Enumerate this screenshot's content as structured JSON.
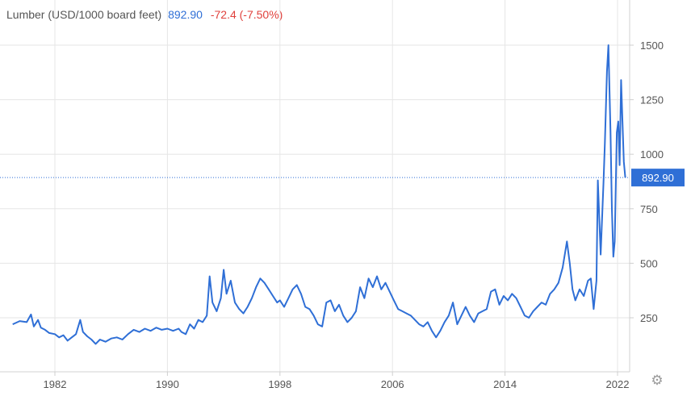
{
  "header": {
    "title": "Lumber (USD/1000 board feet)",
    "price": "892.90",
    "change": "-72.4 (-7.50%)"
  },
  "colors": {
    "line": "#2f6fd6",
    "negative": "#e0413c",
    "grid": "#e6e6e6",
    "axis_text": "#555555"
  },
  "chart_data": {
    "type": "line",
    "title": "Lumber (USD/1000 board feet)",
    "xlabel": "",
    "ylabel": "",
    "xlim": [
      1979.0,
      2023.0
    ],
    "ylim": [
      0,
      1650
    ],
    "x_ticks": [
      1982,
      1990,
      1998,
      2006,
      2014,
      2022
    ],
    "x_tick_labels": [
      "1982",
      "1990",
      "1998",
      "2006",
      "2014",
      "2022"
    ],
    "y_ticks": [
      250,
      500,
      750,
      1000,
      1250,
      1500
    ],
    "y_tick_labels": [
      "250",
      "500",
      "750",
      "1000",
      "1250",
      "1500"
    ],
    "grid": true,
    "last_value": 892.9,
    "last_value_label": "892.90",
    "series": [
      {
        "values": [
          [
            1979.0,
            220
          ],
          [
            1979.5,
            235
          ],
          [
            1980.0,
            230
          ],
          [
            1980.3,
            265
          ],
          [
            1980.5,
            210
          ],
          [
            1980.8,
            240
          ],
          [
            1981.0,
            205
          ],
          [
            1981.3,
            195
          ],
          [
            1981.6,
            180
          ],
          [
            1982.0,
            175
          ],
          [
            1982.3,
            160
          ],
          [
            1982.6,
            170
          ],
          [
            1982.9,
            145
          ],
          [
            1983.2,
            160
          ],
          [
            1983.5,
            175
          ],
          [
            1983.8,
            240
          ],
          [
            1984.0,
            185
          ],
          [
            1984.3,
            165
          ],
          [
            1984.6,
            150
          ],
          [
            1984.9,
            130
          ],
          [
            1985.2,
            150
          ],
          [
            1985.6,
            140
          ],
          [
            1986.0,
            155
          ],
          [
            1986.4,
            160
          ],
          [
            1986.8,
            150
          ],
          [
            1987.2,
            175
          ],
          [
            1987.6,
            195
          ],
          [
            1988.0,
            185
          ],
          [
            1988.4,
            200
          ],
          [
            1988.8,
            190
          ],
          [
            1989.2,
            205
          ],
          [
            1989.6,
            195
          ],
          [
            1990.0,
            200
          ],
          [
            1990.4,
            190
          ],
          [
            1990.8,
            200
          ],
          [
            1991.0,
            185
          ],
          [
            1991.3,
            175
          ],
          [
            1991.6,
            220
          ],
          [
            1991.9,
            200
          ],
          [
            1992.2,
            240
          ],
          [
            1992.5,
            230
          ],
          [
            1992.8,
            260
          ],
          [
            1993.0,
            440
          ],
          [
            1993.2,
            320
          ],
          [
            1993.5,
            280
          ],
          [
            1993.8,
            340
          ],
          [
            1994.0,
            470
          ],
          [
            1994.2,
            360
          ],
          [
            1994.5,
            420
          ],
          [
            1994.8,
            320
          ],
          [
            1995.1,
            290
          ],
          [
            1995.4,
            270
          ],
          [
            1995.7,
            300
          ],
          [
            1996.0,
            340
          ],
          [
            1996.3,
            390
          ],
          [
            1996.6,
            430
          ],
          [
            1996.9,
            410
          ],
          [
            1997.2,
            380
          ],
          [
            1997.5,
            350
          ],
          [
            1997.8,
            320
          ],
          [
            1998.0,
            330
          ],
          [
            1998.3,
            300
          ],
          [
            1998.6,
            340
          ],
          [
            1998.9,
            380
          ],
          [
            1999.2,
            400
          ],
          [
            1999.5,
            360
          ],
          [
            1999.8,
            300
          ],
          [
            2000.1,
            290
          ],
          [
            2000.4,
            260
          ],
          [
            2000.7,
            220
          ],
          [
            2001.0,
            210
          ],
          [
            2001.3,
            320
          ],
          [
            2001.6,
            330
          ],
          [
            2001.9,
            280
          ],
          [
            2002.2,
            310
          ],
          [
            2002.5,
            260
          ],
          [
            2002.8,
            230
          ],
          [
            2003.1,
            250
          ],
          [
            2003.4,
            280
          ],
          [
            2003.7,
            390
          ],
          [
            2004.0,
            340
          ],
          [
            2004.3,
            430
          ],
          [
            2004.6,
            390
          ],
          [
            2004.9,
            440
          ],
          [
            2005.2,
            380
          ],
          [
            2005.5,
            410
          ],
          [
            2005.8,
            370
          ],
          [
            2006.1,
            330
          ],
          [
            2006.4,
            290
          ],
          [
            2006.7,
            280
          ],
          [
            2007.0,
            270
          ],
          [
            2007.3,
            260
          ],
          [
            2007.6,
            240
          ],
          [
            2007.9,
            220
          ],
          [
            2008.2,
            210
          ],
          [
            2008.5,
            230
          ],
          [
            2008.8,
            190
          ],
          [
            2009.1,
            160
          ],
          [
            2009.4,
            190
          ],
          [
            2009.7,
            230
          ],
          [
            2010.0,
            260
          ],
          [
            2010.3,
            320
          ],
          [
            2010.6,
            220
          ],
          [
            2010.9,
            260
          ],
          [
            2011.2,
            300
          ],
          [
            2011.5,
            260
          ],
          [
            2011.8,
            230
          ],
          [
            2012.1,
            270
          ],
          [
            2012.4,
            280
          ],
          [
            2012.7,
            290
          ],
          [
            2013.0,
            370
          ],
          [
            2013.3,
            380
          ],
          [
            2013.6,
            310
          ],
          [
            2013.9,
            350
          ],
          [
            2014.2,
            330
          ],
          [
            2014.5,
            360
          ],
          [
            2014.8,
            340
          ],
          [
            2015.1,
            300
          ],
          [
            2015.4,
            260
          ],
          [
            2015.7,
            250
          ],
          [
            2016.0,
            280
          ],
          [
            2016.3,
            300
          ],
          [
            2016.6,
            320
          ],
          [
            2016.9,
            310
          ],
          [
            2017.2,
            360
          ],
          [
            2017.5,
            380
          ],
          [
            2017.8,
            410
          ],
          [
            2018.1,
            480
          ],
          [
            2018.4,
            600
          ],
          [
            2018.6,
            500
          ],
          [
            2018.8,
            380
          ],
          [
            2019.0,
            330
          ],
          [
            2019.3,
            380
          ],
          [
            2019.6,
            350
          ],
          [
            2019.9,
            420
          ],
          [
            2020.1,
            430
          ],
          [
            2020.3,
            290
          ],
          [
            2020.5,
            420
          ],
          [
            2020.6,
            880
          ],
          [
            2020.8,
            540
          ],
          [
            2021.0,
            870
          ],
          [
            2021.1,
            1050
          ],
          [
            2021.25,
            1380
          ],
          [
            2021.35,
            1500
          ],
          [
            2021.5,
            1100
          ],
          [
            2021.6,
            750
          ],
          [
            2021.7,
            530
          ],
          [
            2021.8,
            600
          ],
          [
            2021.95,
            1100
          ],
          [
            2022.05,
            1150
          ],
          [
            2022.15,
            950
          ],
          [
            2022.25,
            1340
          ],
          [
            2022.35,
            1150
          ],
          [
            2022.45,
            965
          ],
          [
            2022.55,
            892.9
          ]
        ]
      }
    ]
  }
}
